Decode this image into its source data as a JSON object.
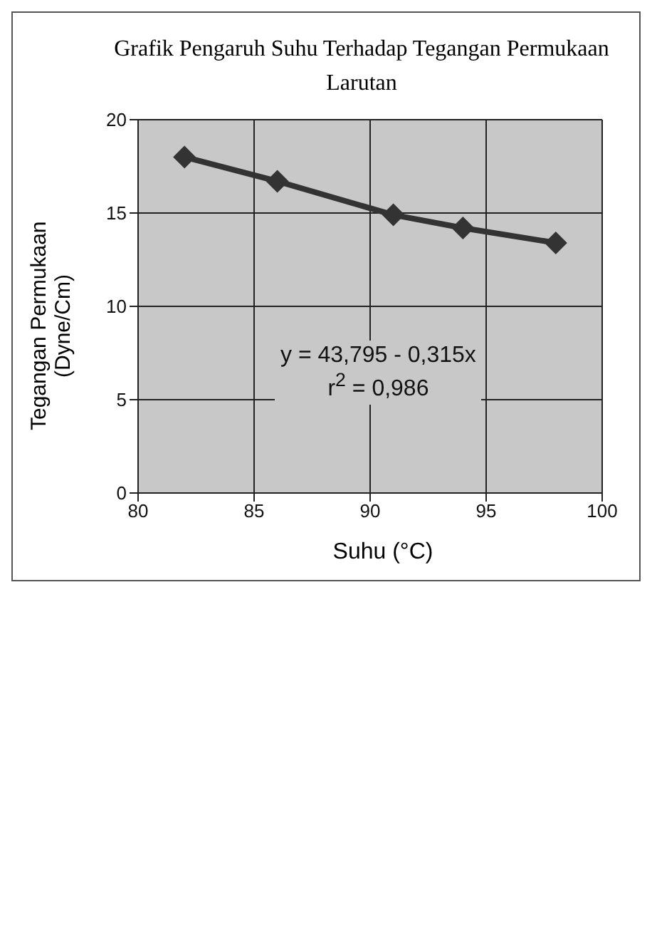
{
  "chart_data": {
    "type": "line",
    "title": "Grafik Pengaruh Suhu Terhadap Tegangan Permukaan Larutan",
    "xlabel": "Suhu (°C)",
    "ylabel": "Tegangan Permukaan (Dyne/Cm)",
    "x": [
      82,
      86,
      91,
      94,
      98
    ],
    "series": [
      {
        "color": "#333333",
        "values": [
          18.0,
          16.7,
          14.9,
          14.2,
          13.4
        ]
      }
    ],
    "xlim": [
      80,
      100
    ],
    "xticks": [
      80,
      85,
      90,
      95,
      100
    ],
    "ylim": [
      0,
      20
    ],
    "yticks": [
      0,
      5,
      10,
      15,
      20
    ],
    "grid": true,
    "marker": "diamond",
    "line_style": "solid",
    "annotations": [
      "y = 43,795 - 0,315x",
      "r$^{2}$ = 0,986"
    ]
  }
}
